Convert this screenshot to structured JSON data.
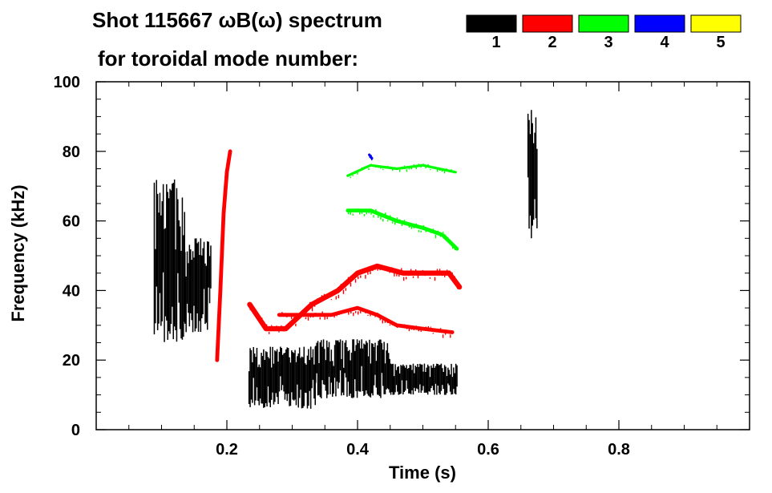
{
  "chart_data": {
    "type": "heatmap",
    "title_line1": "Shot 115667 ωB(ω) spectrum",
    "title_line2": "for toroidal mode number:",
    "xlabel": "Time (s)",
    "ylabel": "Frequency (kHz)",
    "xlim": [
      0.0,
      1.0
    ],
    "ylim": [
      0,
      100
    ],
    "x_ticks": [
      0.2,
      0.4,
      0.6,
      0.8
    ],
    "x_tick_labels": [
      "0.2",
      "0.4",
      "0.6",
      "0.8"
    ],
    "y_ticks": [
      0,
      20,
      40,
      60,
      80,
      100
    ],
    "y_tick_labels": [
      "0",
      "20",
      "40",
      "60",
      "80",
      "100"
    ],
    "grid": false,
    "legend_position": "top-right",
    "legend": [
      {
        "mode": 1,
        "label": "1",
        "color": "#000000"
      },
      {
        "mode": 2,
        "label": "2",
        "color": "#ff0000"
      },
      {
        "mode": 3,
        "label": "3",
        "color": "#00ff00"
      },
      {
        "mode": 4,
        "label": "4",
        "color": "#0000ff"
      },
      {
        "mode": 5,
        "label": "5",
        "color": "#ffff00"
      }
    ],
    "series": [
      {
        "name": "n=1",
        "mode": 1,
        "color": "#000000",
        "kind": "burst",
        "t_start": 0.088,
        "t_end": 0.135,
        "f_low": 25,
        "f_high": 72
      },
      {
        "name": "n=1",
        "mode": 1,
        "color": "#000000",
        "kind": "burst",
        "t_start": 0.135,
        "t_end": 0.175,
        "f_low": 28,
        "f_high": 55
      },
      {
        "name": "n=1",
        "mode": 1,
        "color": "#000000",
        "kind": "burst",
        "t_start": 0.233,
        "t_end": 0.335,
        "f_low": 6,
        "f_high": 24
      },
      {
        "name": "n=1",
        "mode": 1,
        "color": "#000000",
        "kind": "burst",
        "t_start": 0.335,
        "t_end": 0.45,
        "f_low": 9,
        "f_high": 26
      },
      {
        "name": "n=1",
        "mode": 1,
        "color": "#000000",
        "kind": "burst",
        "t_start": 0.45,
        "t_end": 0.553,
        "f_low": 10,
        "f_high": 19
      },
      {
        "name": "n=1",
        "mode": 1,
        "color": "#000000",
        "kind": "burst",
        "t_start": 0.66,
        "t_end": 0.675,
        "f_low": 55,
        "f_high": 92
      },
      {
        "name": "n=2",
        "mode": 2,
        "color": "#ff0000",
        "kind": "chirp",
        "width": 4,
        "t": [
          0.235,
          0.26,
          0.29,
          0.33,
          0.37,
          0.4,
          0.43,
          0.47,
          0.51,
          0.54,
          0.556
        ],
        "f": [
          36,
          29,
          29,
          36,
          40,
          45,
          47,
          45,
          45,
          45,
          41
        ]
      },
      {
        "name": "n=2",
        "mode": 2,
        "color": "#ff0000",
        "kind": "chirp",
        "width": 3,
        "t": [
          0.28,
          0.32,
          0.36,
          0.4,
          0.43,
          0.46,
          0.5,
          0.545
        ],
        "f": [
          33,
          33,
          33,
          35,
          33,
          30,
          29,
          28
        ]
      },
      {
        "name": "n=2",
        "mode": 2,
        "color": "#ff0000",
        "kind": "chirp",
        "width": 3,
        "t": [
          0.185,
          0.19,
          0.195,
          0.2,
          0.205
        ],
        "f": [
          20,
          40,
          62,
          74,
          80
        ]
      },
      {
        "name": "n=3",
        "mode": 3,
        "color": "#00ff00",
        "kind": "chirp",
        "width": 3,
        "t": [
          0.385,
          0.42,
          0.46,
          0.5,
          0.53,
          0.552
        ],
        "f": [
          63,
          63,
          60,
          58,
          56,
          52
        ]
      },
      {
        "name": "n=3",
        "mode": 3,
        "color": "#00ff00",
        "kind": "chirp",
        "width": 2,
        "t": [
          0.385,
          0.42,
          0.46,
          0.5,
          0.55
        ],
        "f": [
          73,
          76,
          75,
          76,
          74
        ]
      },
      {
        "name": "n=4",
        "mode": 4,
        "color": "#0000ff",
        "kind": "chirp",
        "width": 2,
        "t": [
          0.418,
          0.422
        ],
        "f": [
          79,
          78
        ]
      }
    ]
  }
}
